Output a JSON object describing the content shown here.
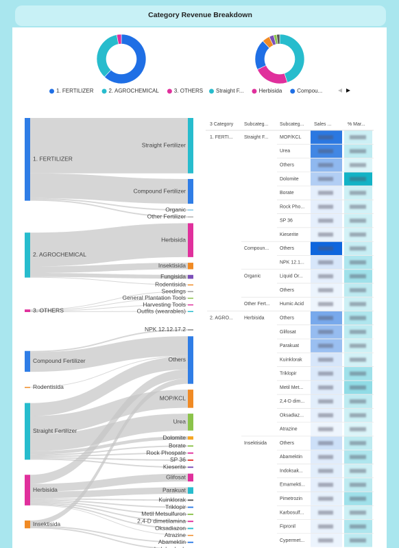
{
  "header": {
    "title": "Category Revenue Breakdown"
  },
  "donuts": [
    {
      "type": "pie",
      "slices": [
        {
          "name": "1. FERTILIZER",
          "color": "#1f6fe5",
          "value": 62
        },
        {
          "name": "2. AGROCHEMICAL",
          "color": "#27bccd",
          "value": 35
        },
        {
          "name": "3. OTHERS",
          "color": "#e0309c",
          "value": 3
        }
      ]
    },
    {
      "type": "pie",
      "slices": [
        {
          "name": "Straight F...",
          "color": "#27bccd",
          "value": 45
        },
        {
          "name": "Herbisida",
          "color": "#e0309c",
          "value": 23
        },
        {
          "name": "Compou...",
          "color": "#1f6fe5",
          "value": 20
        },
        {
          "name": null,
          "color": "#f08a24",
          "value": 5
        },
        {
          "name": null,
          "color": "#7b4fb8",
          "value": 3
        },
        {
          "name": null,
          "color": "#8bc34a",
          "value": 2
        },
        {
          "name": null,
          "color": "#555555",
          "value": 2
        }
      ]
    }
  ],
  "sankeys": [
    {
      "type": "sankey",
      "link_color": "#c4c4c4",
      "nodes": [
        {
          "name": "1. FERTILIZER",
          "color": "#2f7de6"
        },
        {
          "name": "2. AGROCHEMICAL",
          "color": "#27bccd"
        },
        {
          "name": "3. OTHERS",
          "color": "#e0309c"
        },
        {
          "name": "Straight Fertilizer",
          "color": "#27bccd"
        },
        {
          "name": "Compound Fertilizer",
          "color": "#2f7de6"
        },
        {
          "name": "Organic",
          "color": "#9ad0e8"
        },
        {
          "name": "Other Fertilizer",
          "color": "#bdbdbd"
        },
        {
          "name": "Herbisida",
          "color": "#e0309c"
        },
        {
          "name": "Insektisida",
          "color": "#f08a24"
        },
        {
          "name": "Fungisida",
          "color": "#7b4fb8"
        },
        {
          "name": "Rodentisida",
          "color": "#f08a24"
        },
        {
          "name": "Seedings",
          "color": "#9e9e9e"
        },
        {
          "name": "General Plantation Tools",
          "color": "#8bc34a"
        },
        {
          "name": "Harvesting Tools",
          "color": "#e0309c"
        },
        {
          "name": "Outfits (wearables)",
          "color": "#27bccd"
        }
      ],
      "links": [
        {
          "source": 0,
          "target": 3,
          "value": 85
        },
        {
          "source": 0,
          "target": 4,
          "value": 38
        },
        {
          "source": 0,
          "target": 5,
          "value": 2
        },
        {
          "source": 0,
          "target": 6,
          "value": 2
        },
        {
          "source": 1,
          "target": 7,
          "value": 52
        },
        {
          "source": 1,
          "target": 8,
          "value": 10
        },
        {
          "source": 1,
          "target": 9,
          "value": 6
        },
        {
          "source": 1,
          "target": 10,
          "value": 1
        },
        {
          "source": 2,
          "target": 11,
          "value": 1
        },
        {
          "source": 2,
          "target": 12,
          "value": 1
        },
        {
          "source": 2,
          "target": 13,
          "value": 1
        },
        {
          "source": 2,
          "target": 14,
          "value": 1
        }
      ]
    },
    {
      "type": "sankey",
      "link_color": "#c4c4c4",
      "nodes": [
        {
          "name": "Compound Fertilizer",
          "color": "#2f7de6"
        },
        {
          "name": "Rodentisida",
          "color": "#f08a24"
        },
        {
          "name": "Straight Fertilizer",
          "color": "#27bccd"
        },
        {
          "name": "Herbisida",
          "color": "#e0309c"
        },
        {
          "name": "Insektisida",
          "color": "#f08a24"
        },
        {
          "name": "NPK 12.12.17.2",
          "color": "#9e9e9e"
        },
        {
          "name": "Others",
          "color": "#2f7de6"
        },
        {
          "name": "MOP/KCL",
          "color": "#f08a24"
        },
        {
          "name": "Urea",
          "color": "#8bc34a"
        },
        {
          "name": "Dolomite",
          "color": "#f5a623"
        },
        {
          "name": "Borate",
          "color": "#8bc34a"
        },
        {
          "name": "Rock Phospate",
          "color": "#e0309c"
        },
        {
          "name": "SP 36",
          "color": "#e53935"
        },
        {
          "name": "Kieserite",
          "color": "#7b4fb8"
        },
        {
          "name": "Glifosat",
          "color": "#e0309c"
        },
        {
          "name": "Parakuat",
          "color": "#27bccd"
        },
        {
          "name": "Kuinklorak",
          "color": "#555555"
        },
        {
          "name": "Triklopir",
          "color": "#2f7de6"
        },
        {
          "name": "Metil Metsulfuron",
          "color": "#8bc34a"
        },
        {
          "name": "2,4-D dimetilamina",
          "color": "#e0309c"
        },
        {
          "name": "Oksadiazon",
          "color": "#27bccd"
        },
        {
          "name": "Atrazine",
          "color": "#f08a24"
        },
        {
          "name": "Abamektin",
          "color": "#2f7de6"
        },
        {
          "name": "Indoksakarb",
          "color": "#e0309c"
        }
      ],
      "links": [
        {
          "source": 0,
          "target": 5,
          "value": 2
        },
        {
          "source": 0,
          "target": 6,
          "value": 30
        },
        {
          "source": 1,
          "target": 6,
          "value": 1
        },
        {
          "source": 2,
          "target": 6,
          "value": 20
        },
        {
          "source": 2,
          "target": 7,
          "value": 28
        },
        {
          "source": 2,
          "target": 8,
          "value": 26
        },
        {
          "source": 2,
          "target": 9,
          "value": 5
        },
        {
          "source": 2,
          "target": 10,
          "value": 2
        },
        {
          "source": 2,
          "target": 11,
          "value": 2
        },
        {
          "source": 2,
          "target": 12,
          "value": 2
        },
        {
          "source": 2,
          "target": 13,
          "value": 2
        },
        {
          "source": 3,
          "target": 6,
          "value": 14
        },
        {
          "source": 3,
          "target": 14,
          "value": 12
        },
        {
          "source": 3,
          "target": 15,
          "value": 10
        },
        {
          "source": 3,
          "target": 16,
          "value": 2
        },
        {
          "source": 3,
          "target": 17,
          "value": 2
        },
        {
          "source": 3,
          "target": 18,
          "value": 2
        },
        {
          "source": 3,
          "target": 19,
          "value": 2
        },
        {
          "source": 3,
          "target": 20,
          "value": 2
        },
        {
          "source": 3,
          "target": 21,
          "value": 1
        },
        {
          "source": 4,
          "target": 6,
          "value": 8
        },
        {
          "source": 4,
          "target": 22,
          "value": 2
        },
        {
          "source": 4,
          "target": 23,
          "value": 2
        }
      ]
    }
  ],
  "table": {
    "columns": [
      "3 Category",
      "Subcateg...",
      "Subcateg...",
      "Sales ...",
      "% Mar..."
    ],
    "sales_colors": [
      "#eef5fd",
      "#0f66dd"
    ],
    "margin_colors": [
      "#dcf5f9",
      "#12b3c6"
    ],
    "rows": [
      [
        "1. FERTI...",
        "Straight F...",
        "MOP/KCL",
        88,
        30
      ],
      [
        null,
        null,
        "Urea",
        78,
        35
      ],
      [
        null,
        null,
        "Others",
        45,
        25
      ],
      [
        null,
        null,
        "Dolomite",
        30,
        92
      ],
      [
        null,
        null,
        "Borate",
        8,
        30
      ],
      [
        null,
        null,
        "Rock Pho...",
        8,
        28
      ],
      [
        null,
        null,
        "SP 36",
        8,
        30
      ],
      [
        null,
        null,
        "Kieserite",
        6,
        28
      ],
      [
        null,
        "Compoun...",
        "Others",
        100,
        32
      ],
      [
        null,
        null,
        "NPK 12.1...",
        14,
        40
      ],
      [
        null,
        "Organic",
        "Liquid Or...",
        8,
        45
      ],
      [
        null,
        null,
        "Others",
        5,
        35
      ],
      [
        null,
        "Other Fert...",
        "Humic Acid",
        4,
        30
      ],
      [
        "2. AGRO...",
        "Herbisida",
        "Others",
        55,
        40
      ],
      [
        null,
        null,
        "Glifosat",
        42,
        35
      ],
      [
        null,
        null,
        "Parakuat",
        40,
        30
      ],
      [
        null,
        null,
        "Kuinklorak",
        14,
        28
      ],
      [
        null,
        null,
        "Triklopir",
        12,
        45
      ],
      [
        null,
        null,
        "Metil Met...",
        10,
        50
      ],
      [
        null,
        null,
        "2,4-D dim...",
        9,
        35
      ],
      [
        null,
        null,
        "Oksadiaz...",
        8,
        30
      ],
      [
        null,
        null,
        "Atrazine",
        4,
        25
      ],
      [
        null,
        "Insektisida",
        "Others",
        18,
        35
      ],
      [
        null,
        null,
        "Abamektin",
        10,
        40
      ],
      [
        null,
        null,
        "Indoksak...",
        9,
        30
      ],
      [
        null,
        null,
        "Emamekti...",
        8,
        35
      ],
      [
        null,
        null,
        "Pimetrozin",
        7,
        45
      ],
      [
        null,
        null,
        "Karbosulf...",
        7,
        30
      ],
      [
        null,
        null,
        "Fipronil",
        6,
        40
      ],
      [
        null,
        null,
        "Cypermet...",
        5,
        35
      ]
    ]
  }
}
